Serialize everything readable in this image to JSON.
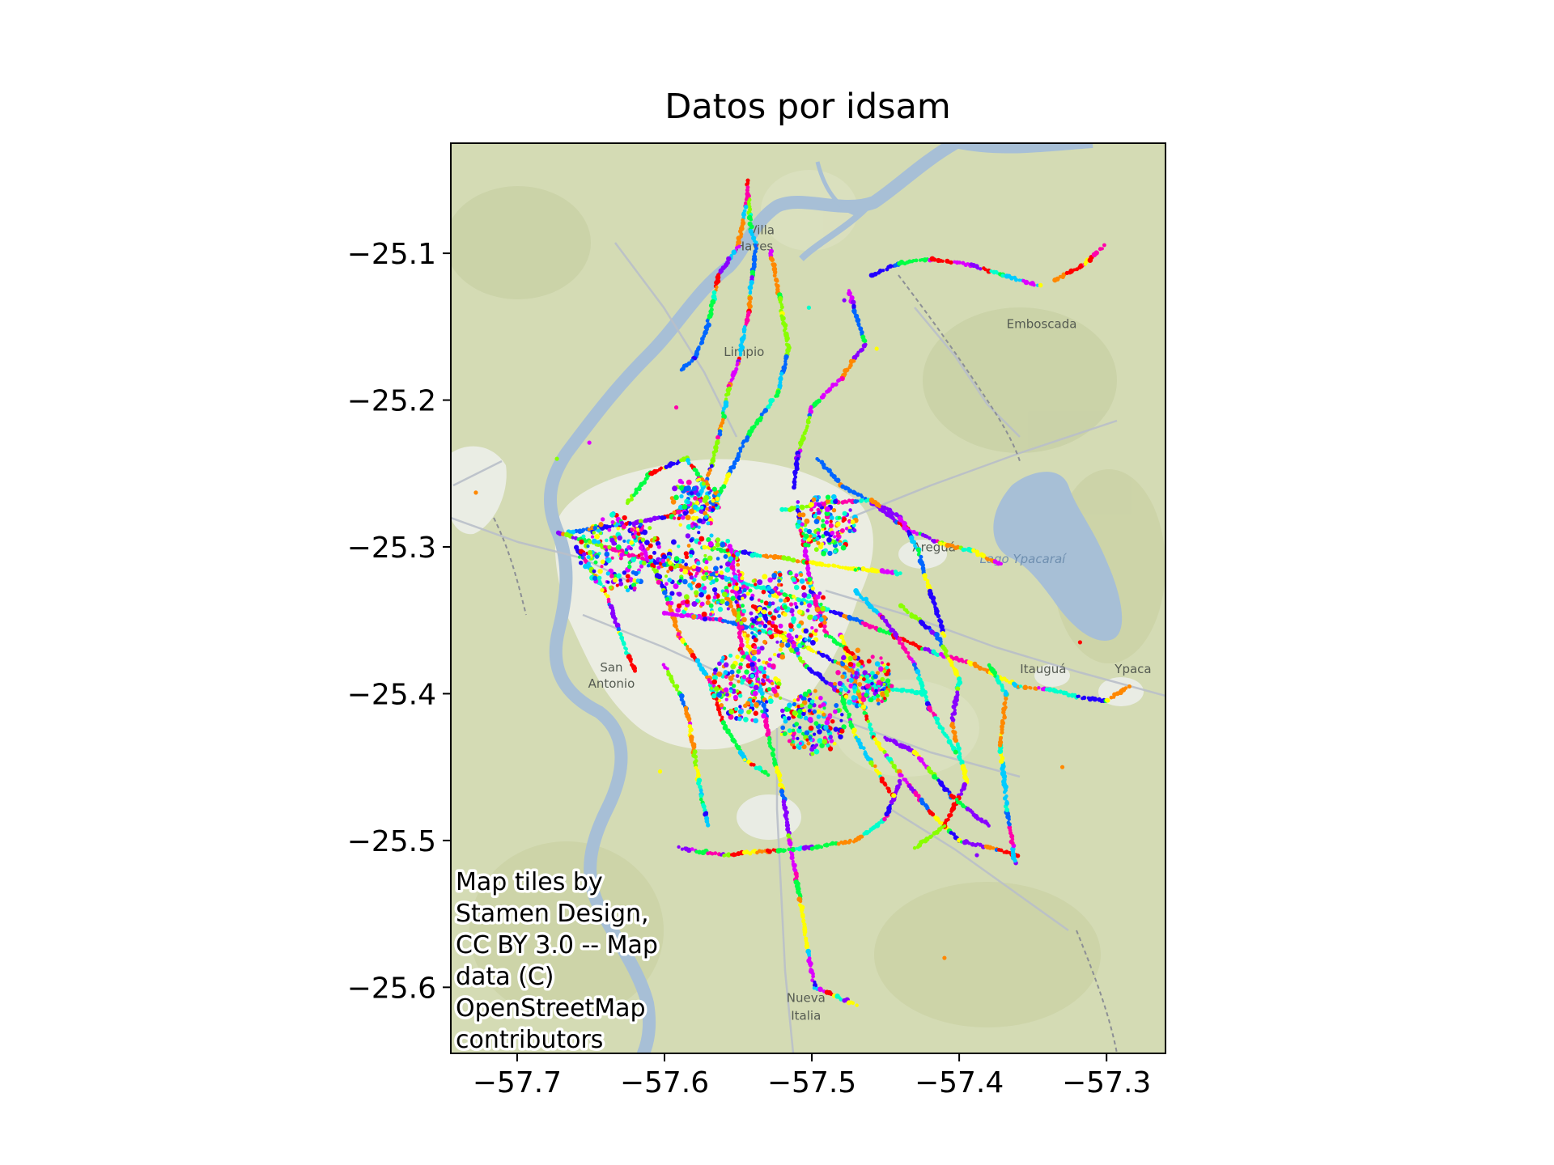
{
  "chart_data": {
    "type": "scatter",
    "title": "Datos por idsam",
    "xlabel": "",
    "ylabel": "",
    "xlim": [
      -57.745,
      -57.26
    ],
    "ylim": [
      -25.645,
      -25.025
    ],
    "x_ticks": [
      -57.7,
      -57.6,
      -57.5,
      -57.4,
      -57.3
    ],
    "x_tick_labels": [
      "−57.7",
      "−57.6",
      "−57.5",
      "−57.4",
      "−57.3"
    ],
    "y_ticks": [
      -25.1,
      -25.2,
      -25.3,
      -25.4,
      -25.5,
      -25.6
    ],
    "y_tick_labels": [
      "−25.1",
      "−25.2",
      "−25.3",
      "−25.4",
      "−25.5",
      "−25.6"
    ],
    "grid": false,
    "legend": "none",
    "colormap": "hsv",
    "palette": [
      "#ff0000",
      "#ff8800",
      "#ffff00",
      "#88ff00",
      "#00ff44",
      "#00ffcc",
      "#00ccff",
      "#0066ff",
      "#2200ff",
      "#8800ff",
      "#dd00ff",
      "#ff00aa"
    ],
    "basemap": {
      "land_color": "#d4dbb4",
      "water_color": "#a7bfd6",
      "urban_color": "#f1f1ef",
      "road_color": "#b9bfc9",
      "place_labels": [
        {
          "text": "Villa",
          "lon": -57.534,
          "lat": -25.087
        },
        {
          "text": "Hayes",
          "lon": -57.539,
          "lat": -25.098
        },
        {
          "text": "Limpio",
          "lon": -57.546,
          "lat": -25.17
        },
        {
          "text": "Emboscada",
          "lon": -57.344,
          "lat": -25.151
        },
        {
          "text": "Areguá",
          "lon": -57.417,
          "lat": -25.303
        },
        {
          "text": "Lago Ypacaraí",
          "lon": -57.357,
          "lat": -25.311
        },
        {
          "text": "San",
          "lon": -57.636,
          "lat": -25.385
        },
        {
          "text": "Antonio",
          "lon": -57.636,
          "lat": -25.396
        },
        {
          "text": "Itauguá",
          "lon": -57.343,
          "lat": -25.386
        },
        {
          "text": "Ypaca",
          "lon": -57.282,
          "lat": -25.386
        },
        {
          "text": "Nueva",
          "lon": -57.504,
          "lat": -25.61
        },
        {
          "text": "Italia",
          "lon": -57.504,
          "lat": -25.622
        }
      ]
    },
    "attribution": [
      "Map tiles by",
      "Stamen Design,",
      "CC BY 3.0 -- Map",
      "data (C)",
      "OpenStreetMap",
      "contributors"
    ],
    "routes": [
      [
        [
          -57.544,
          -25.05
        ],
        [
          -57.541,
          -25.085
        ],
        [
          -57.538,
          -25.095
        ]
      ],
      [
        [
          -57.544,
          -25.062
        ],
        [
          -57.55,
          -25.095
        ],
        [
          -57.563,
          -25.115
        ],
        [
          -57.571,
          -25.15
        ],
        [
          -57.58,
          -25.172
        ],
        [
          -57.589,
          -25.18
        ]
      ],
      [
        [
          -57.538,
          -25.095
        ],
        [
          -57.543,
          -25.14
        ],
        [
          -57.55,
          -25.175
        ],
        [
          -57.556,
          -25.19
        ],
        [
          -57.562,
          -25.22
        ],
        [
          -57.568,
          -25.245
        ],
        [
          -57.578,
          -25.27
        ],
        [
          -57.6,
          -25.28
        ],
        [
          -57.63,
          -25.285
        ],
        [
          -57.665,
          -25.29
        ]
      ],
      [
        [
          -57.528,
          -25.098
        ],
        [
          -57.522,
          -25.13
        ],
        [
          -57.516,
          -25.165
        ],
        [
          -57.523,
          -25.195
        ],
        [
          -57.544,
          -25.225
        ],
        [
          -57.556,
          -25.25
        ],
        [
          -57.568,
          -25.275
        ]
      ],
      [
        [
          -57.475,
          -25.125
        ],
        [
          -57.464,
          -25.162
        ],
        [
          -57.48,
          -25.185
        ],
        [
          -57.5,
          -25.205
        ],
        [
          -57.51,
          -25.24
        ],
        [
          -57.512,
          -25.26
        ]
      ],
      [
        [
          -57.46,
          -25.115
        ],
        [
          -57.441,
          -25.107
        ],
        [
          -57.418,
          -25.104
        ],
        [
          -57.392,
          -25.108
        ],
        [
          -57.37,
          -25.115
        ],
        [
          -57.345,
          -25.122
        ]
      ],
      [
        [
          -57.335,
          -25.118
        ],
        [
          -57.315,
          -25.108
        ],
        [
          -57.302,
          -25.095
        ]
      ],
      [
        [
          -57.496,
          -25.24
        ],
        [
          -57.48,
          -25.258
        ],
        [
          -57.459,
          -25.27
        ],
        [
          -57.435,
          -25.288
        ],
        [
          -57.412,
          -25.298
        ],
        [
          -57.39,
          -25.303
        ],
        [
          -57.372,
          -25.312
        ]
      ],
      [
        [
          -57.52,
          -25.275
        ],
        [
          -57.49,
          -25.27
        ],
        [
          -57.46,
          -25.268
        ],
        [
          -57.44,
          -25.28
        ],
        [
          -57.428,
          -25.302
        ],
        [
          -57.42,
          -25.33
        ],
        [
          -57.41,
          -25.36
        ]
      ],
      [
        [
          -57.672,
          -25.29
        ],
        [
          -57.64,
          -25.3
        ],
        [
          -57.61,
          -25.31
        ],
        [
          -57.58,
          -25.315
        ],
        [
          -57.545,
          -25.325
        ],
        [
          -57.51,
          -25.335
        ],
        [
          -57.475,
          -25.348
        ],
        [
          -57.445,
          -25.36
        ],
        [
          -57.418,
          -25.372
        ],
        [
          -57.39,
          -25.38
        ],
        [
          -57.36,
          -25.395
        ]
      ],
      [
        [
          -57.36,
          -25.395
        ],
        [
          -57.34,
          -25.397
        ],
        [
          -57.32,
          -25.402
        ],
        [
          -57.3,
          -25.405
        ],
        [
          -57.285,
          -25.395
        ]
      ],
      [
        [
          -57.56,
          -25.33
        ],
        [
          -57.545,
          -25.36
        ],
        [
          -57.535,
          -25.395
        ],
        [
          -57.529,
          -25.43
        ],
        [
          -57.52,
          -25.465
        ],
        [
          -57.515,
          -25.5
        ],
        [
          -57.508,
          -25.54
        ],
        [
          -57.503,
          -25.575
        ],
        [
          -57.498,
          -25.6
        ],
        [
          -57.47,
          -25.612
        ]
      ],
      [
        [
          -57.59,
          -25.505
        ],
        [
          -57.56,
          -25.51
        ],
        [
          -57.53,
          -25.507
        ],
        [
          -57.5,
          -25.505
        ],
        [
          -57.47,
          -25.5
        ],
        [
          -57.45,
          -25.485
        ],
        [
          -57.44,
          -25.46
        ]
      ],
      [
        [
          -57.48,
          -25.36
        ],
        [
          -57.47,
          -25.395
        ],
        [
          -57.458,
          -25.43
        ],
        [
          -57.44,
          -25.455
        ],
        [
          -57.42,
          -25.48
        ],
        [
          -57.4,
          -25.5
        ],
        [
          -57.375,
          -25.506
        ],
        [
          -57.36,
          -25.51
        ]
      ],
      [
        [
          -57.362,
          -25.515
        ],
        [
          -57.368,
          -25.475
        ],
        [
          -57.372,
          -25.435
        ],
        [
          -57.368,
          -25.4
        ],
        [
          -57.38,
          -25.38
        ]
      ],
      [
        [
          -57.44,
          -25.34
        ],
        [
          -57.415,
          -25.36
        ],
        [
          -57.4,
          -25.39
        ],
        [
          -57.405,
          -25.42
        ],
        [
          -57.395,
          -25.46
        ],
        [
          -57.41,
          -25.49
        ],
        [
          -57.43,
          -25.505
        ]
      ],
      [
        [
          -57.66,
          -25.3
        ],
        [
          -57.64,
          -25.33
        ],
        [
          -57.63,
          -25.36
        ],
        [
          -57.62,
          -25.385
        ]
      ],
      [
        [
          -57.62,
          -25.29
        ],
        [
          -57.6,
          -25.33
        ],
        [
          -57.59,
          -25.36
        ],
        [
          -57.57,
          -25.39
        ],
        [
          -57.56,
          -25.42
        ],
        [
          -57.545,
          -25.445
        ],
        [
          -57.53,
          -25.455
        ]
      ],
      [
        [
          -57.6,
          -25.38
        ],
        [
          -57.585,
          -25.41
        ],
        [
          -57.58,
          -25.44
        ],
        [
          -57.575,
          -25.47
        ],
        [
          -57.57,
          -25.49
        ]
      ],
      [
        [
          -57.54,
          -25.34
        ],
        [
          -57.52,
          -25.36
        ],
        [
          -57.505,
          -25.38
        ],
        [
          -57.48,
          -25.4
        ],
        [
          -57.47,
          -25.43
        ],
        [
          -57.445,
          -25.47
        ]
      ],
      [
        [
          -57.51,
          -25.27
        ],
        [
          -57.505,
          -25.3
        ],
        [
          -57.5,
          -25.33
        ],
        [
          -57.49,
          -25.36
        ],
        [
          -57.47,
          -25.375
        ]
      ],
      [
        [
          -57.575,
          -25.3
        ],
        [
          -57.54,
          -25.305
        ],
        [
          -57.505,
          -25.31
        ],
        [
          -57.47,
          -25.315
        ],
        [
          -57.44,
          -25.318
        ]
      ],
      [
        [
          -57.6,
          -25.345
        ],
        [
          -57.56,
          -25.35
        ],
        [
          -57.525,
          -25.36
        ],
        [
          -57.495,
          -25.372
        ],
        [
          -57.455,
          -25.395
        ],
        [
          -57.425,
          -25.4
        ]
      ],
      [
        [
          -57.45,
          -25.43
        ],
        [
          -57.43,
          -25.44
        ],
        [
          -57.405,
          -25.47
        ],
        [
          -57.38,
          -25.49
        ]
      ],
      [
        [
          -57.625,
          -25.27
        ],
        [
          -57.61,
          -25.25
        ],
        [
          -57.585,
          -25.24
        ],
        [
          -57.57,
          -25.26
        ]
      ],
      [
        [
          -57.555,
          -25.3
        ],
        [
          -57.55,
          -25.34
        ],
        [
          -57.548,
          -25.37
        ],
        [
          -57.535,
          -25.385
        ]
      ],
      [
        [
          -57.47,
          -25.33
        ],
        [
          -57.45,
          -25.35
        ],
        [
          -57.43,
          -25.38
        ],
        [
          -57.42,
          -25.41
        ],
        [
          -57.402,
          -25.44
        ]
      ]
    ],
    "clusters": [
      {
        "lon": -57.63,
        "lat": -25.305,
        "r": 0.028
      },
      {
        "lon": -57.575,
        "lat": -25.32,
        "r": 0.03
      },
      {
        "lon": -57.52,
        "lat": -25.345,
        "r": 0.03
      },
      {
        "lon": -57.545,
        "lat": -25.395,
        "r": 0.025
      },
      {
        "lon": -57.5,
        "lat": -25.42,
        "r": 0.022
      },
      {
        "lon": -57.49,
        "lat": -25.285,
        "r": 0.02
      },
      {
        "lon": -57.465,
        "lat": -25.39,
        "r": 0.02
      },
      {
        "lon": -57.58,
        "lat": -25.27,
        "r": 0.018
      }
    ],
    "outliers": [
      {
        "lon": -57.592,
        "lat": -25.205
      },
      {
        "lon": -57.651,
        "lat": -25.229
      },
      {
        "lon": -57.673,
        "lat": -25.24
      },
      {
        "lon": -57.603,
        "lat": -25.453
      },
      {
        "lon": -57.728,
        "lat": -25.263
      },
      {
        "lon": -57.502,
        "lat": -25.137
      },
      {
        "lon": -57.478,
        "lat": -25.132
      },
      {
        "lon": -57.456,
        "lat": -25.165
      },
      {
        "lon": -57.318,
        "lat": -25.365
      },
      {
        "lon": -57.33,
        "lat": -25.45
      },
      {
        "lon": -57.388,
        "lat": -25.51
      },
      {
        "lon": -57.41,
        "lat": -25.58
      }
    ]
  }
}
